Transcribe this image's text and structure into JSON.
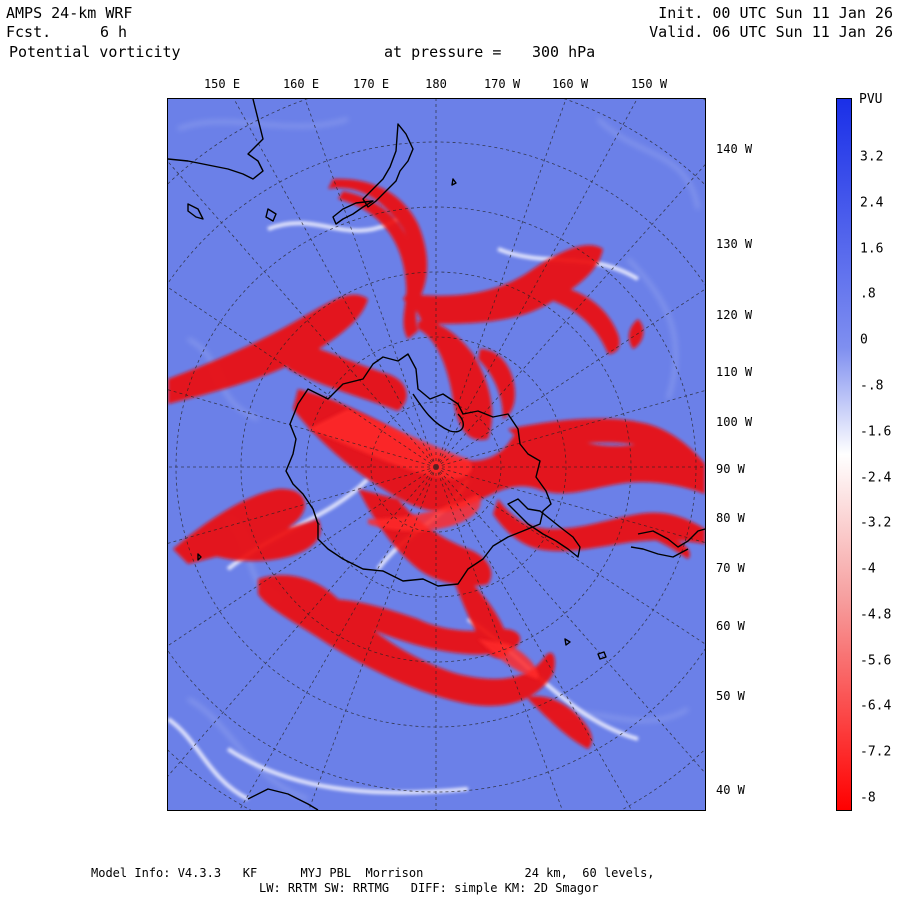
{
  "header": {
    "model": "AMPS 24-km WRF",
    "fcst_label": "Fcst.",
    "fcst_value": "6 h",
    "field": "Potential vorticity",
    "level_label": "at pressure =",
    "level_value": "300 hPa",
    "init": "Init. 00 UTC Sun 11 Jan 26",
    "valid": "Valid. 06 UTC Sun 11 Jan 26"
  },
  "longitude_top_labels": [
    "150 E",
    "160 E",
    "170 E",
    "180",
    "170 W",
    "160 W",
    "150 W"
  ],
  "longitude_right_labels": [
    "140 W",
    "130 W",
    "120 W",
    "110 W",
    "100 W",
    "90 W",
    "80 W",
    "70 W",
    "60 W",
    "50 W",
    "40 W"
  ],
  "colorbar": {
    "unit": "PVU",
    "labels": [
      "3.2",
      "2.4",
      "1.6",
      ".8",
      "0",
      "-.8",
      "-1.6",
      "-2.4",
      "-3.2",
      "-4",
      "-4.8",
      "-5.6",
      "-6.4",
      "-7.2",
      "-8"
    ],
    "top_color": "#1a2fe8",
    "bottom_color": "#ff0000",
    "middle_color": "#ffffff"
  },
  "footer": {
    "line1": "Model Info: V4.3.3   KF      MYJ PBL  Morrison              24 km,  60 levels,",
    "line2": "LW: RRTM SW: RRTMG   DIFF: simple KM: 2D Smagor"
  },
  "colors": {
    "background_pv": "#6b80e8",
    "high_negative_pv": "#ee1111",
    "coastline": "#000000"
  }
}
